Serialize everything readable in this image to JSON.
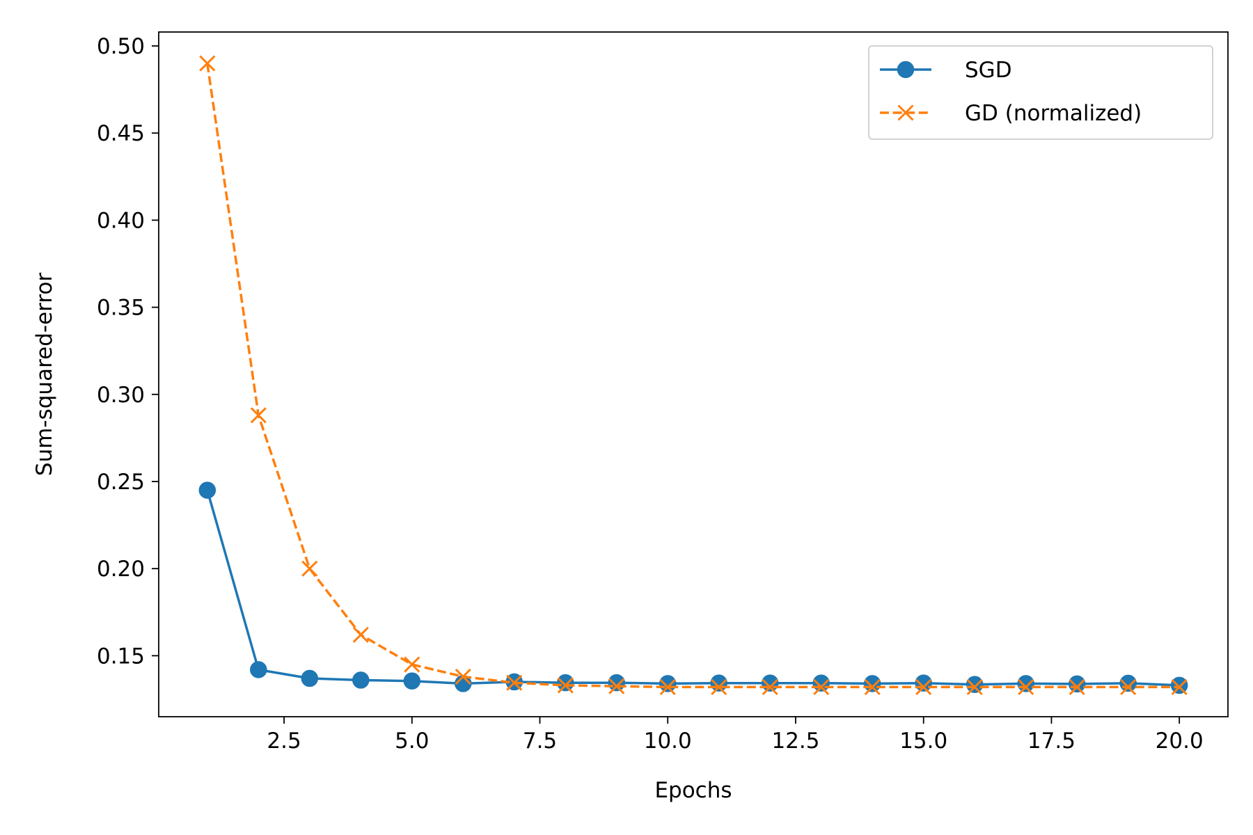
{
  "chart_data": {
    "type": "line",
    "xlabel": "Epochs",
    "ylabel": "Sum-squared-error",
    "xlim": [
      0.05,
      20.95
    ],
    "ylim": [
      0.115,
      0.508
    ],
    "xticks": [
      2.5,
      5.0,
      7.5,
      10.0,
      12.5,
      15.0,
      17.5,
      20.0
    ],
    "xtick_labels": [
      "2.5",
      "5.0",
      "7.5",
      "10.0",
      "12.5",
      "15.0",
      "17.5",
      "20.0"
    ],
    "yticks": [
      0.15,
      0.2,
      0.25,
      0.3,
      0.35,
      0.4,
      0.45,
      0.5
    ],
    "ytick_labels": [
      "0.15",
      "0.20",
      "0.25",
      "0.30",
      "0.35",
      "0.40",
      "0.45",
      "0.50"
    ],
    "grid": false,
    "legend_position": "top-right",
    "x": [
      1,
      2,
      3,
      4,
      5,
      6,
      7,
      8,
      9,
      10,
      11,
      12,
      13,
      14,
      15,
      16,
      17,
      18,
      19,
      20
    ],
    "series": [
      {
        "name": "SGD",
        "color": "#1f77b4",
        "marker": "circle",
        "linestyle": "solid",
        "values": [
          0.245,
          0.142,
          0.137,
          0.136,
          0.1355,
          0.134,
          0.135,
          0.1345,
          0.1345,
          0.134,
          0.1343,
          0.1343,
          0.1343,
          0.134,
          0.1343,
          0.1335,
          0.134,
          0.1338,
          0.1342,
          0.133
        ]
      },
      {
        "name": "GD (normalized)",
        "color": "#ff7f0e",
        "marker": "x",
        "linestyle": "dashed",
        "values": [
          0.49,
          0.288,
          0.2,
          0.162,
          0.145,
          0.138,
          0.1345,
          0.133,
          0.1325,
          0.132,
          0.132,
          0.132,
          0.132,
          0.132,
          0.132,
          0.132,
          0.132,
          0.132,
          0.132,
          0.132
        ]
      }
    ]
  }
}
